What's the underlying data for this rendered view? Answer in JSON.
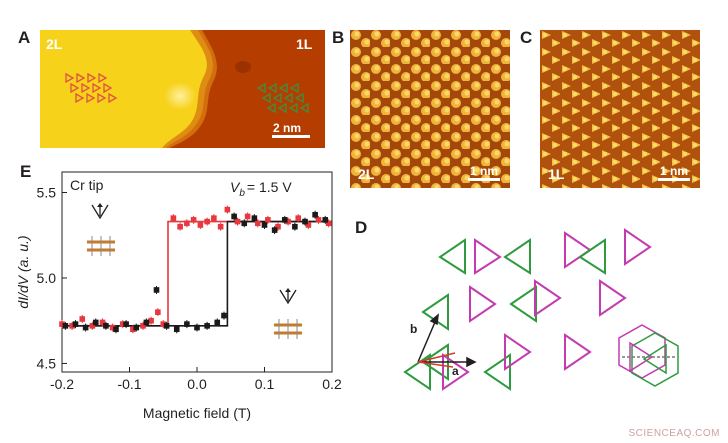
{
  "panels": {
    "A": {
      "letter": "A",
      "left_label": "2L",
      "right_label": "1L",
      "scale": "2 nm"
    },
    "B": {
      "letter": "B",
      "label": "2L",
      "scale": "1 nm"
    },
    "C": {
      "letter": "C",
      "label": "1L",
      "scale": "1 nm"
    },
    "D": {
      "letter": "D",
      "vec_a": "a",
      "vec_b": "b"
    },
    "E": {
      "letter": "E",
      "tip": "Cr tip",
      "vb_prefix": "V",
      "vb_sub": "b",
      "vb_value": "= 1.5 V"
    }
  },
  "colors": {
    "film_2L": "#f6d21a",
    "film_1L": "#b63d00",
    "tri_red": "#e0523f",
    "tri_green": "#3f8f3f",
    "sweep_red": "#e8383f",
    "sweep_black": "#1a1a1a",
    "lattice_pink": "#c33bb0",
    "lattice_green": "#2e9b3f"
  },
  "chart_data": {
    "type": "scatter",
    "title": "",
    "xlabel": "Magnetic field (T)",
    "ylabel": "dI/dV (a. u.)",
    "xlim": [
      -0.2,
      0.2
    ],
    "ylim": [
      4.45,
      5.62
    ],
    "xticks": [
      "-0.2",
      "-0.1",
      "0.0",
      "0.1",
      "0.2"
    ],
    "yticks": [
      "4.5",
      "5.0",
      "5.5"
    ],
    "series": [
      {
        "color": "red",
        "fit": [
          [
            -0.2,
            4.72
          ],
          [
            -0.043,
            4.72
          ],
          [
            -0.043,
            5.33
          ],
          [
            0.2,
            5.33
          ]
        ],
        "x": [
          -0.2,
          -0.185,
          -0.17,
          -0.155,
          -0.14,
          -0.125,
          -0.11,
          -0.095,
          -0.08,
          -0.068,
          -0.058,
          -0.05,
          -0.035,
          -0.025,
          -0.015,
          -0.005,
          0.005,
          0.015,
          0.025,
          0.035,
          0.045,
          0.06,
          0.075,
          0.09,
          0.105,
          0.12,
          0.135,
          0.15,
          0.165,
          0.18,
          0.195
        ],
        "y": [
          4.73,
          4.72,
          4.76,
          4.72,
          4.74,
          4.71,
          4.73,
          4.7,
          4.72,
          4.75,
          4.8,
          4.73,
          5.35,
          5.3,
          5.32,
          5.34,
          5.31,
          5.33,
          5.35,
          5.3,
          5.4,
          5.33,
          5.36,
          5.32,
          5.34,
          5.3,
          5.33,
          5.35,
          5.31,
          5.34,
          5.32
        ]
      },
      {
        "color": "black",
        "fit": [
          [
            -0.2,
            4.72
          ],
          [
            0.045,
            4.72
          ],
          [
            0.045,
            5.33
          ],
          [
            0.2,
            5.33
          ]
        ],
        "x": [
          -0.195,
          -0.18,
          -0.165,
          -0.15,
          -0.135,
          -0.12,
          -0.105,
          -0.09,
          -0.075,
          -0.06,
          -0.045,
          -0.03,
          -0.015,
          0.0,
          0.015,
          0.03,
          0.04,
          0.055,
          0.07,
          0.085,
          0.1,
          0.115,
          0.13,
          0.145,
          0.16,
          0.175,
          0.19
        ],
        "y": [
          4.72,
          4.73,
          4.71,
          4.74,
          4.72,
          4.7,
          4.73,
          4.71,
          4.74,
          4.93,
          4.72,
          4.7,
          4.73,
          4.71,
          4.72,
          4.74,
          4.78,
          5.36,
          5.32,
          5.35,
          5.31,
          5.28,
          5.34,
          5.3,
          5.33,
          5.37,
          5.34
        ]
      }
    ]
  }
}
